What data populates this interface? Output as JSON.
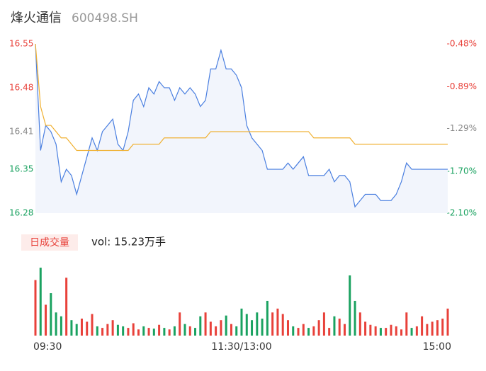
{
  "chart_data": {
    "type": "line",
    "title": "烽火通信",
    "subtitle": "600498.SH",
    "x": [
      0,
      3,
      6,
      9,
      12,
      15,
      18,
      21,
      24,
      27,
      30,
      33,
      36,
      39,
      42,
      45,
      48,
      51,
      54,
      57,
      60,
      63,
      66,
      69,
      72,
      75,
      78,
      81,
      84,
      87,
      90,
      93,
      96,
      99,
      102,
      105,
      108,
      111,
      114,
      117,
      120,
      123,
      126,
      129,
      132,
      135,
      138,
      141,
      144,
      147,
      150,
      153,
      156,
      159,
      162,
      165,
      168,
      171,
      174,
      177,
      180,
      183,
      186,
      189,
      192,
      195,
      198,
      201,
      204,
      207,
      210,
      213,
      216,
      219,
      222,
      225,
      228,
      231,
      234,
      237,
      240
    ],
    "xlim": [
      0,
      240
    ],
    "xticks": [
      {
        "value": 0,
        "label": "09:30"
      },
      {
        "value": 120,
        "label": "11:30/13:00"
      },
      {
        "value": 240,
        "label": "15:00"
      }
    ],
    "ylim": [
      16.28,
      16.55
    ],
    "yticks": [
      16.55,
      16.48,
      16.41,
      16.35,
      16.28
    ],
    "y2lim": [
      -2.1,
      -0.48
    ],
    "y2ticks": [
      {
        "value": -0.48,
        "label": "-0.48%"
      },
      {
        "value": -0.89,
        "label": "-0.89%"
      },
      {
        "value": -1.29,
        "label": "-1.29%"
      },
      {
        "value": -1.7,
        "label": "-1.70%"
      },
      {
        "value": -2.1,
        "label": "-2.10%"
      }
    ],
    "up_color": "#e8413a",
    "down_color": "#1aa260",
    "flat_color": "#888888",
    "series": [
      {
        "color": "#4a7fe0",
        "values": [
          16.55,
          16.38,
          16.42,
          16.41,
          16.39,
          16.33,
          16.35,
          16.34,
          16.31,
          16.34,
          16.37,
          16.4,
          16.38,
          16.41,
          16.42,
          16.43,
          16.39,
          16.38,
          16.41,
          16.46,
          16.47,
          16.45,
          16.48,
          16.47,
          16.49,
          16.48,
          16.48,
          16.46,
          16.48,
          16.47,
          16.48,
          16.47,
          16.45,
          16.46,
          16.51,
          16.51,
          16.54,
          16.51,
          16.51,
          16.5,
          16.48,
          16.42,
          16.4,
          16.39,
          16.38,
          16.35,
          16.35,
          16.35,
          16.35,
          16.36,
          16.35,
          16.36,
          16.37,
          16.34,
          16.34,
          16.34,
          16.34,
          16.35,
          16.33,
          16.34,
          16.34,
          16.33,
          16.29,
          16.3,
          16.31,
          16.31,
          16.31,
          16.3,
          16.3,
          16.3,
          16.31,
          16.33,
          16.36,
          16.35,
          16.35,
          16.35,
          16.35,
          16.35,
          16.35,
          16.35,
          16.35
        ]
      },
      {
        "color": "#f0b030",
        "values": [
          16.55,
          16.45,
          16.42,
          16.42,
          16.41,
          16.4,
          16.4,
          16.39,
          16.38,
          16.38,
          16.38,
          16.38,
          16.38,
          16.38,
          16.38,
          16.38,
          16.38,
          16.38,
          16.38,
          16.39,
          16.39,
          16.39,
          16.39,
          16.39,
          16.39,
          16.4,
          16.4,
          16.4,
          16.4,
          16.4,
          16.4,
          16.4,
          16.4,
          16.4,
          16.41,
          16.41,
          16.41,
          16.41,
          16.41,
          16.41,
          16.41,
          16.41,
          16.41,
          16.41,
          16.41,
          16.41,
          16.41,
          16.41,
          16.41,
          16.41,
          16.41,
          16.41,
          16.41,
          16.41,
          16.4,
          16.4,
          16.4,
          16.4,
          16.4,
          16.4,
          16.4,
          16.4,
          16.39,
          16.39,
          16.39,
          16.39,
          16.39,
          16.39,
          16.39,
          16.39,
          16.39,
          16.39,
          16.39,
          16.39,
          16.39,
          16.39,
          16.39,
          16.39,
          16.39,
          16.39,
          16.39
        ]
      }
    ],
    "volume": {
      "name": "日成交量",
      "label": "vol: 15.23万手",
      "ylim": [
        0,
        100
      ],
      "values": [
        72,
        88,
        40,
        55,
        30,
        25,
        75,
        20,
        15,
        22,
        18,
        28,
        12,
        10,
        15,
        20,
        14,
        12,
        10,
        16,
        8,
        12,
        10,
        9,
        14,
        10,
        8,
        12,
        30,
        15,
        12,
        10,
        25,
        30,
        18,
        12,
        20,
        26,
        15,
        12,
        35,
        28,
        20,
        30,
        22,
        45,
        30,
        35,
        28,
        20,
        12,
        10,
        15,
        10,
        12,
        20,
        30,
        10,
        25,
        22,
        15,
        78,
        45,
        30,
        18,
        14,
        12,
        10,
        10,
        14,
        12,
        8,
        30,
        10,
        12,
        25,
        15,
        18,
        20,
        22,
        35
      ]
    }
  }
}
